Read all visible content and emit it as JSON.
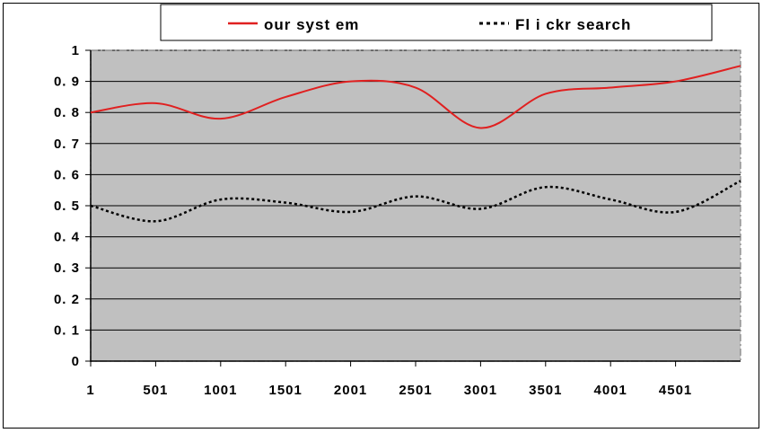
{
  "chart_data": {
    "type": "line",
    "title": "",
    "xlabel": "",
    "ylabel": "",
    "x_ticks": [
      "1",
      "501",
      "1001",
      "1501",
      "2001",
      "2501",
      "3001",
      "3501",
      "4001",
      "4501"
    ],
    "x_tick_values": [
      1,
      501,
      1001,
      1501,
      2001,
      2501,
      3001,
      3501,
      4001,
      4501
    ],
    "xlim": [
      1,
      5001
    ],
    "y_ticks": [
      "0",
      "0. 1",
      "0. 2",
      "0. 3",
      "0. 4",
      "0. 5",
      "0. 6",
      "0. 7",
      "0. 8",
      "0. 9",
      "1"
    ],
    "ylim": [
      0,
      1
    ],
    "grid": "horizontal",
    "legend_position": "top",
    "background_color": "#c0c0c0",
    "series": [
      {
        "name": "our syst em",
        "color": "#e02020",
        "style": "solid",
        "x": [
          1,
          501,
          1001,
          1501,
          2001,
          2501,
          3001,
          3501,
          4001,
          4501,
          5001
        ],
        "y": [
          0.8,
          0.83,
          0.78,
          0.85,
          0.9,
          0.88,
          0.75,
          0.86,
          0.88,
          0.9,
          0.95
        ]
      },
      {
        "name": "Fl i ckr search",
        "color": "#000000",
        "style": "dotted",
        "x": [
          1,
          501,
          1001,
          1501,
          2001,
          2501,
          3001,
          3501,
          4001,
          4501,
          5001
        ],
        "y": [
          0.5,
          0.45,
          0.52,
          0.51,
          0.48,
          0.53,
          0.49,
          0.56,
          0.52,
          0.48,
          0.58
        ]
      }
    ]
  }
}
